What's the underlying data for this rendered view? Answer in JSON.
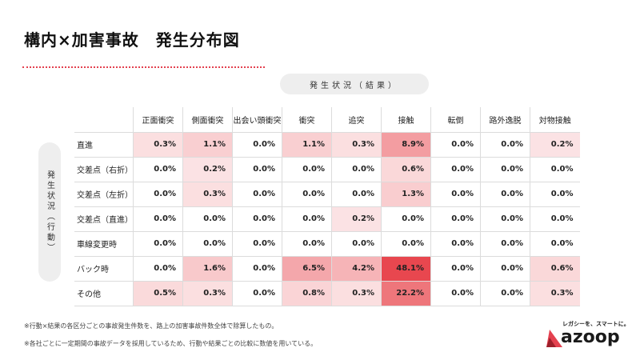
{
  "title": "構内×加害事故　発生分布図",
  "top_label": "発生状況（結果）",
  "side_label": "発生状況（行動）",
  "notes": [
    "※行動×結果の各区分ごとの事故発生件数を、路上の加害事故件数全体で除算したもの。",
    "※各社ごとに一定期間の事故データを採用しているため、行動や結果ごとの比較に数値を用いている。"
  ],
  "logo": {
    "tagline": "レガシーを、スマートに。",
    "word": "azoop"
  },
  "colors": {
    "heat_max": "#e8474f",
    "base": "#ffffff",
    "accent": "#e4414f"
  },
  "chart_data": {
    "type": "heatmap",
    "title": "構内×加害事故　発生分布図",
    "xlabel": "発生状況（結果）",
    "ylabel": "発生状況（行動）",
    "columns": [
      "正面衝突",
      "側面衝突",
      "出会い頭衝突",
      "衝突",
      "追突",
      "接触",
      "転倒",
      "路外逸脱",
      "対物接触"
    ],
    "rows": [
      {
        "label": "直進",
        "values": [
          0.3,
          1.1,
          0.0,
          1.1,
          0.3,
          8.9,
          0.0,
          0.0,
          0.2
        ]
      },
      {
        "label": "交差点（右折）",
        "values": [
          0.0,
          0.2,
          0.0,
          0.0,
          0.0,
          0.6,
          0.0,
          0.0,
          0.0
        ]
      },
      {
        "label": "交差点（左折）",
        "values": [
          0.0,
          0.3,
          0.0,
          0.0,
          0.0,
          1.3,
          0.0,
          0.0,
          0.0
        ]
      },
      {
        "label": "交差点（直進）",
        "values": [
          0.0,
          0.0,
          0.0,
          0.0,
          0.2,
          0.0,
          0.0,
          0.0,
          0.0
        ]
      },
      {
        "label": "車線変更時",
        "values": [
          0.0,
          0.0,
          0.0,
          0.0,
          0.0,
          0.0,
          0.0,
          0.0,
          0.0
        ]
      },
      {
        "label": "バック時",
        "values": [
          0.0,
          1.6,
          0.0,
          6.5,
          4.2,
          48.1,
          0.0,
          0.0,
          0.6
        ]
      },
      {
        "label": "その他",
        "values": [
          0.5,
          0.3,
          0.0,
          0.8,
          0.3,
          22.2,
          0.0,
          0.0,
          0.3
        ]
      }
    ],
    "unit": "%"
  }
}
